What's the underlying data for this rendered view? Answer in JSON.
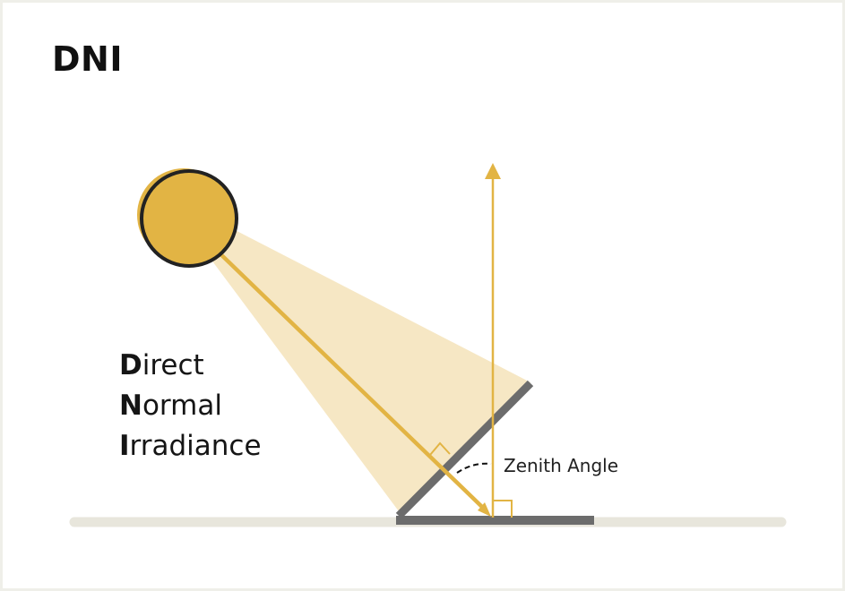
{
  "title": "DNI",
  "legend": [
    {
      "initial": "D",
      "rest": "irect"
    },
    {
      "initial": "N",
      "rest": "ormal"
    },
    {
      "initial": "I",
      "rest": "rradiance"
    }
  ],
  "zenith_label": "Zenith Angle",
  "colors": {
    "background": "#ffffff",
    "outer_frame": "#efefe9",
    "sun_fill": "#e2b444",
    "sun_outline": "#222222",
    "beam": "#f6e7c4",
    "ray": "#e2b444",
    "panel": "#6c6c6c",
    "ground": "#e8e6dc",
    "text": "#151515"
  },
  "icons": {
    "sun": "sun-icon",
    "right_angle": "right-angle-marker-icon",
    "angle_arc": "dashed-angle-arc-icon"
  }
}
